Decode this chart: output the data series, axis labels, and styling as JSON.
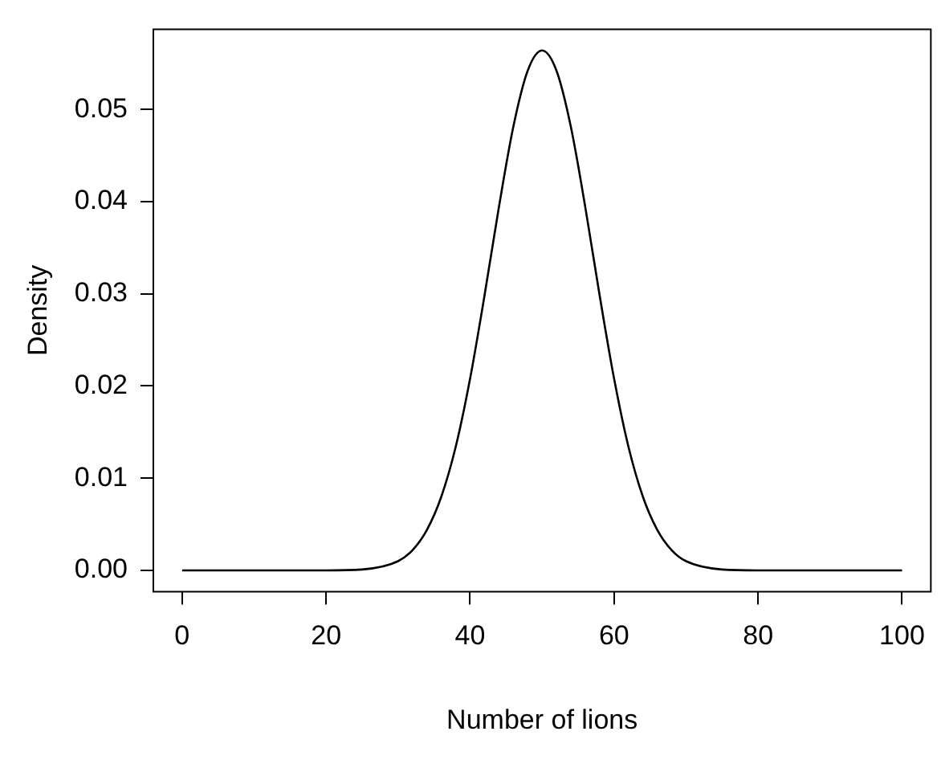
{
  "chart_data": {
    "type": "line",
    "xlabel": "Number of lions",
    "ylabel": "Density",
    "x": [
      0,
      10,
      20,
      25,
      30,
      32,
      34,
      36,
      38,
      40,
      42,
      44,
      46,
      48,
      50,
      52,
      54,
      56,
      58,
      60,
      62,
      64,
      66,
      68,
      70,
      75,
      80,
      90,
      100
    ],
    "series": [
      {
        "color": "#000000",
        "values": [
          0,
          0,
          0.0,
          0.0001,
          0.001,
          0.0022,
          0.0044,
          0.008,
          0.0134,
          0.0208,
          0.0298,
          0.0394,
          0.0481,
          0.0542,
          0.0564,
          0.0542,
          0.0481,
          0.0394,
          0.0298,
          0.0208,
          0.0134,
          0.008,
          0.0044,
          0.0022,
          0.001,
          0.0001,
          0,
          0,
          0
        ]
      }
    ],
    "xlim": [
      -4,
      104
    ],
    "ylim": [
      -0.0023,
      0.0587
    ],
    "xticks": [
      0,
      20,
      40,
      60,
      80,
      100
    ],
    "yticks": [
      {
        "value": 0,
        "label": "0.00"
      },
      {
        "value": 0.01,
        "label": "0.01"
      },
      {
        "value": 0.02,
        "label": "0.02"
      },
      {
        "value": 0.03,
        "label": "0.03"
      },
      {
        "value": 0.04,
        "label": "0.04"
      },
      {
        "value": 0.05,
        "label": "0.05"
      }
    ],
    "grid": false,
    "legend": false,
    "marker": "none",
    "line_style": "solid"
  }
}
